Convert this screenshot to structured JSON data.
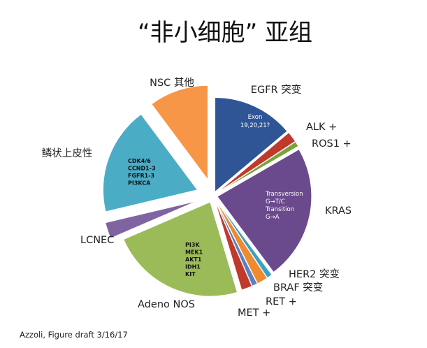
{
  "title": "“非小细胞” 亚组",
  "caption": "Azzoli, Figure draft 3/16/17",
  "chart_data": {
    "type": "pie",
    "title": "“非小细胞” 亚组",
    "slices": [
      {
        "label": "EGFR 突变",
        "value": 15,
        "color": "#2f5597",
        "inner": [
          "Exon",
          "19,20,21?"
        ]
      },
      {
        "label": "ALK +",
        "value": 2,
        "color": "#c0392b",
        "inner": []
      },
      {
        "label": "ROS1 +",
        "value": 1,
        "color": "#7aa33a",
        "inner": []
      },
      {
        "label": "KRAS",
        "value": 25,
        "color": "#6a4a8c",
        "inner": [
          "Transversion",
          "G→T/C",
          "Transition",
          "G→A"
        ]
      },
      {
        "label": "HER2 突变",
        "value": 1,
        "color": "#3da0c3",
        "inner": []
      },
      {
        "label": "BRAF 突变",
        "value": 2,
        "color": "#ee8a2f",
        "inner": []
      },
      {
        "label": "RET +",
        "value": 1,
        "color": "#5b7fc0",
        "inner": []
      },
      {
        "label": "MET +",
        "value": 2,
        "color": "#c0392b",
        "inner": []
      },
      {
        "label": "Adeno NOS",
        "value": 25,
        "color": "#9bbb59",
        "inner": [
          "PI3K",
          "MEK1",
          "AKT1",
          "IDH1",
          "KIT"
        ]
      },
      {
        "label": "LCNEC",
        "value": 3,
        "color": "#8064a2",
        "inner": []
      },
      {
        "label": "鳞状上皮性",
        "value": 20,
        "color": "#4bacc6",
        "inner": [
          "CDK4/6",
          "CCND1-3",
          "FGFR1-3",
          "PI3KCA"
        ]
      },
      {
        "label": "NSC 其他",
        "value": 11,
        "color": "#f79646",
        "inner": []
      }
    ]
  }
}
